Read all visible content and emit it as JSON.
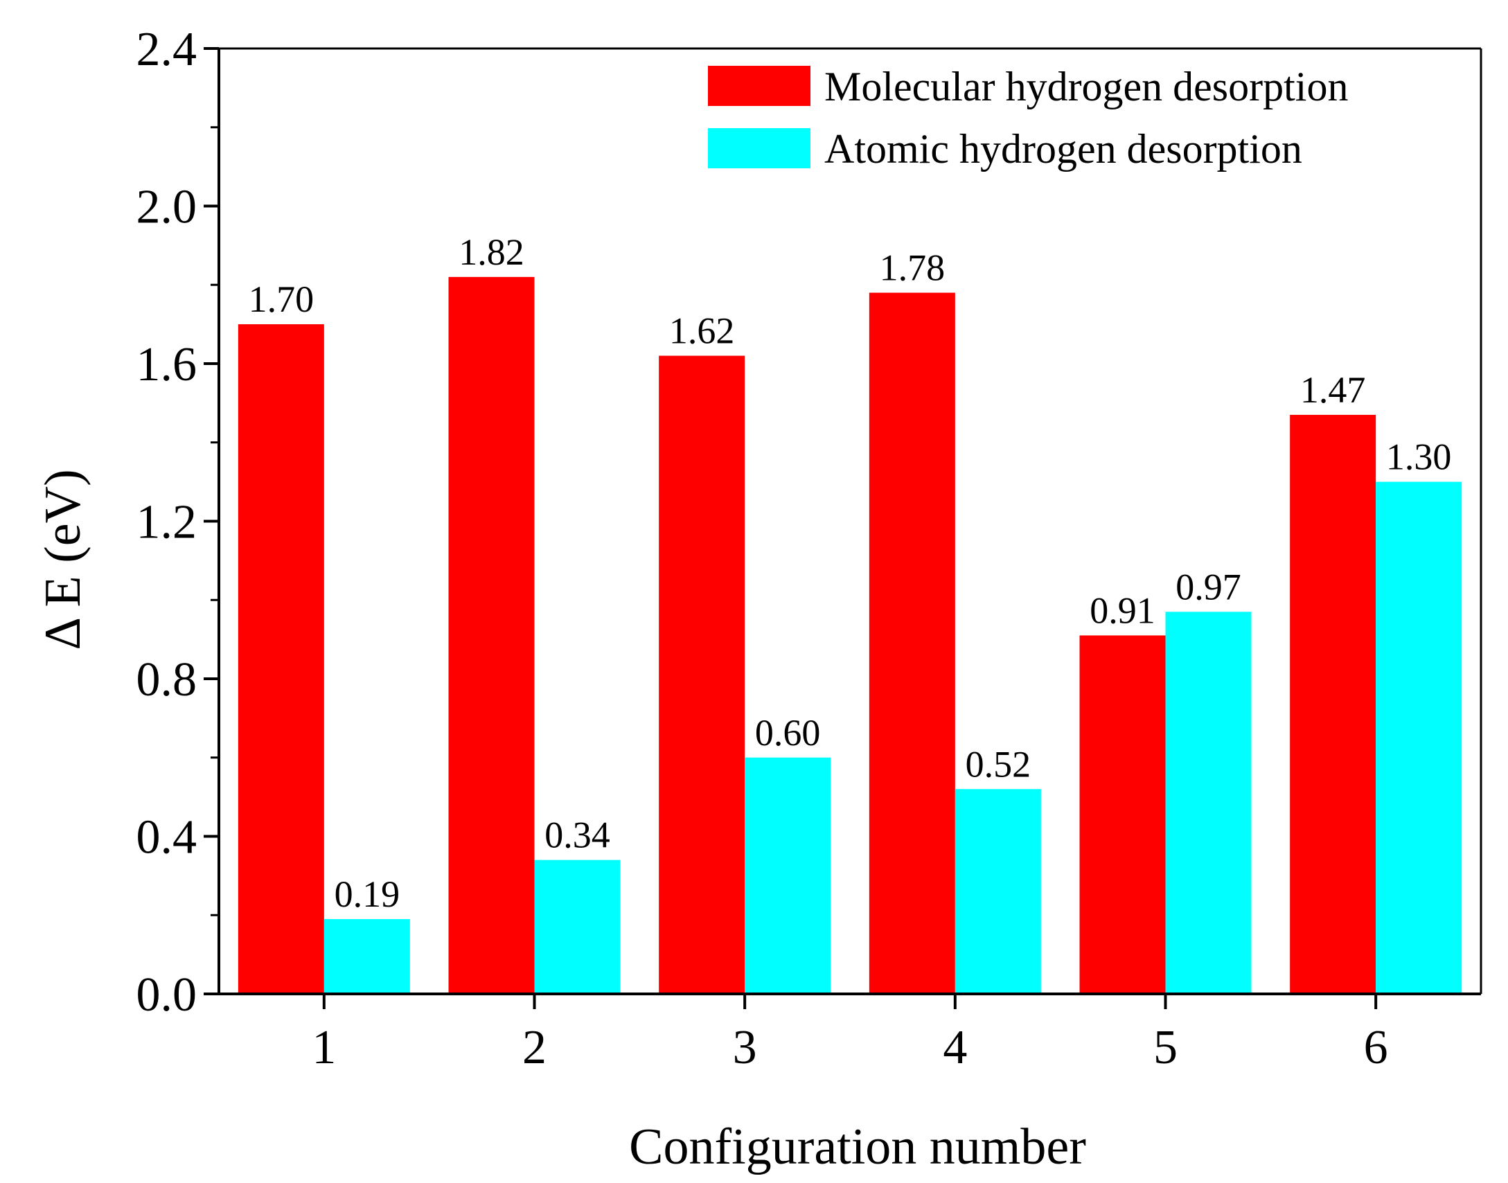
{
  "chart_data": {
    "type": "bar",
    "title": "",
    "xlabel": "Configuration number",
    "ylabel": "Δ E (eV)",
    "categories": [
      "1",
      "2",
      "3",
      "4",
      "5",
      "6"
    ],
    "ylim": [
      0.0,
      2.4
    ],
    "yticks": [
      0.0,
      0.4,
      0.8,
      1.2,
      1.6,
      2.0,
      2.4
    ],
    "ytick_labels": [
      "0.0",
      "0.4",
      "0.8",
      "1.2",
      "1.6",
      "2.0",
      "2.4"
    ],
    "grid": false,
    "legend_position": "top-right",
    "series": [
      {
        "name": "Molecular hydrogen desorption",
        "color": "#ff0000",
        "values": [
          1.7,
          1.82,
          1.62,
          1.78,
          0.91,
          1.47
        ],
        "labels": [
          "1.70",
          "1.82",
          "1.62",
          "1.78",
          "0.91",
          "1.47"
        ]
      },
      {
        "name": "Atomic hydrogen desorption",
        "color": "#00ffff",
        "values": [
          0.19,
          0.34,
          0.6,
          0.52,
          0.97,
          1.3
        ],
        "labels": [
          "0.19",
          "0.34",
          "0.60",
          "0.52",
          "0.97",
          "1.30"
        ]
      }
    ]
  }
}
